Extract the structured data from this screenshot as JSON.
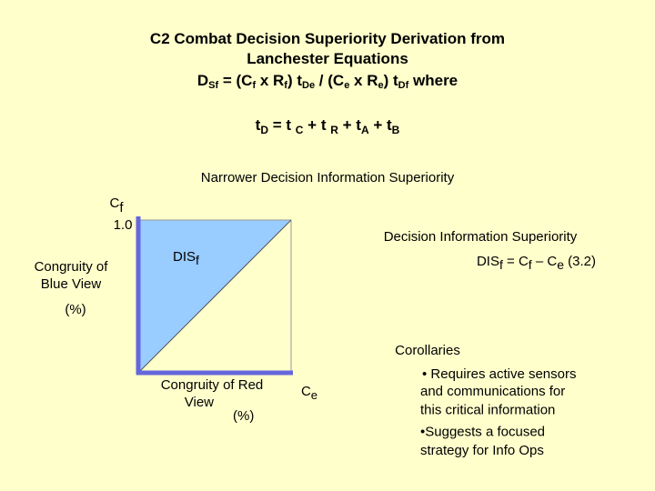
{
  "title": {
    "lines": [
      "C2 Combat Decision Superiority Derivation from",
      "Lanchester Equations"
    ],
    "formula": [
      {
        "text": "D",
        "sub": "Sf"
      },
      {
        "text": " = (C",
        "sub": "f"
      },
      {
        "text": " x R",
        "sub": "f"
      },
      {
        "text": ") t",
        "sub": "De"
      },
      {
        "text": " /  (C",
        "sub": "e"
      },
      {
        "text": " x R",
        "sub": "e"
      },
      {
        "text": ") t",
        "sub": "Df"
      },
      {
        "text": " where"
      }
    ]
  },
  "time_formula": [
    {
      "text": "t",
      "sub": "D"
    },
    {
      "text": "  = t ",
      "sub": "C"
    },
    {
      "text": "  + t ",
      "sub": "R"
    },
    {
      "text": " +  t",
      "sub": "A"
    },
    {
      "text": " + t",
      "sub": "B"
    }
  ],
  "diagram": {
    "heading": "Narrower Decision Information Superiority",
    "y_axis": {
      "symbol": [
        {
          "text": "C",
          "sub": "f"
        }
      ],
      "max": "1.0",
      "label": [
        "Congruity of",
        "Blue View"
      ],
      "unit": "(%)"
    },
    "x_axis": {
      "label": [
        "Congruity of Red",
        "View"
      ],
      "unit": "(%)",
      "symbol": [
        {
          "text": "C",
          "sub": "e"
        }
      ]
    },
    "region_label": [
      {
        "text": "DIS",
        "sub": "f"
      }
    ],
    "definition": {
      "title": "Decision Information Superiority",
      "equation": [
        {
          "text": "DIS",
          "sub": "f"
        },
        {
          "text": " = C",
          "sub": "f"
        },
        {
          "text": " – C",
          "sub": "e"
        },
        {
          "text": "   (3.2)"
        }
      ]
    }
  },
  "corollaries": {
    "title": "Corollaries",
    "items": [
      [
        "• Requires active sensors",
        "and communications for",
        "this critical information"
      ],
      [
        "•Suggests a focused",
        "strategy for Info Ops"
      ]
    ]
  }
}
